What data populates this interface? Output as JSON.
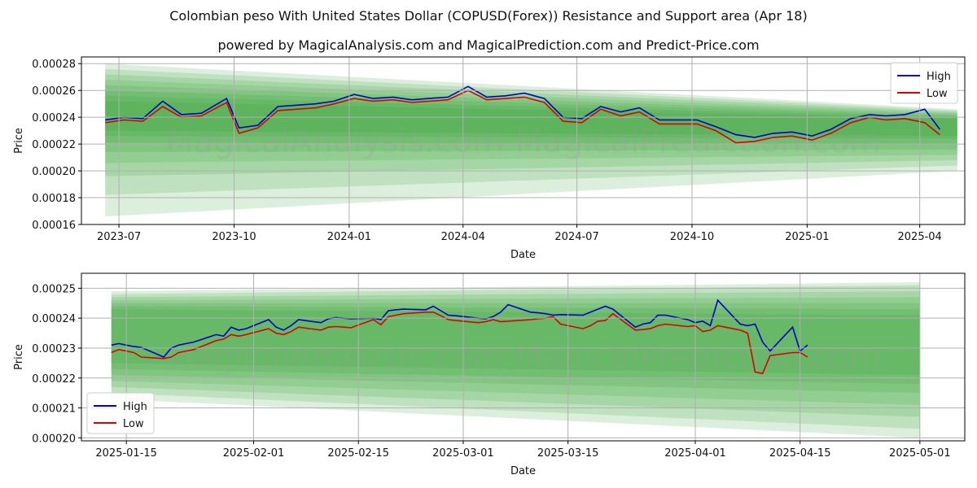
{
  "header": {
    "title": "Colombian peso With United States Dollar (COPUSD(Forex)) Resistance and Support area (Apr 18)",
    "subtitle": "powered by MagicalAnalysis.com and MagicalPrediction.com and Predict-Price.com"
  },
  "watermark": "MagicalAnalysis.com   MagicalPrediction.com",
  "colors": {
    "high": "#0000cc",
    "low": "#dd0000",
    "band": "#2e9e2e",
    "grid": "#b0b0b0"
  },
  "chart_data": [
    {
      "type": "line",
      "xlabel": "Date",
      "ylabel": "Price",
      "xlim": [
        "2023-06-01",
        "2025-05-07"
      ],
      "ylim": [
        0.00016,
        0.000285
      ],
      "xticks": [
        "2023-07-01",
        "2023-10-01",
        "2024-01-01",
        "2024-04-01",
        "2024-07-01",
        "2024-10-01",
        "2025-01-01",
        "2025-04-01"
      ],
      "xtick_labels": [
        "2023-07",
        "2023-10",
        "2024-01",
        "2024-04",
        "2024-07",
        "2024-10",
        "2025-01",
        "2025-04"
      ],
      "yticks": [
        0.00016,
        0.00018,
        0.0002,
        0.00022,
        0.00024,
        0.00026,
        0.00028
      ],
      "ytick_labels": [
        "0.00016",
        "0.00018",
        "0.00020",
        "0.00022",
        "0.00024",
        "0.00026",
        "0.00028"
      ],
      "grid": true,
      "legend": {
        "position": "top-right",
        "entries": [
          "High",
          "Low"
        ]
      },
      "x": [
        "2023-06-20",
        "2023-07-05",
        "2023-07-20",
        "2023-08-05",
        "2023-08-20",
        "2023-09-05",
        "2023-09-25",
        "2023-10-05",
        "2023-10-20",
        "2023-11-05",
        "2023-11-20",
        "2023-12-05",
        "2023-12-20",
        "2024-01-05",
        "2024-01-20",
        "2024-02-05",
        "2024-02-20",
        "2024-03-05",
        "2024-03-20",
        "2024-04-05",
        "2024-04-20",
        "2024-05-05",
        "2024-05-20",
        "2024-06-05",
        "2024-06-20",
        "2024-07-05",
        "2024-07-20",
        "2024-08-05",
        "2024-08-20",
        "2024-09-05",
        "2024-09-20",
        "2024-10-05",
        "2024-10-20",
        "2024-11-05",
        "2024-11-20",
        "2024-12-05",
        "2024-12-20",
        "2025-01-05",
        "2025-01-20",
        "2025-02-05",
        "2025-02-20",
        "2025-03-05",
        "2025-03-20",
        "2025-04-05",
        "2025-04-17"
      ],
      "series": [
        {
          "name": "High",
          "values": [
            0.000238,
            0.00024,
            0.000239,
            0.000252,
            0.000242,
            0.000243,
            0.000254,
            0.000232,
            0.000234,
            0.000248,
            0.000249,
            0.00025,
            0.000252,
            0.000257,
            0.000254,
            0.000255,
            0.000253,
            0.000254,
            0.000255,
            0.000263,
            0.000255,
            0.000256,
            0.000258,
            0.000254,
            0.00024,
            0.000239,
            0.000248,
            0.000244,
            0.000247,
            0.000238,
            0.000238,
            0.000238,
            0.000233,
            0.000227,
            0.000225,
            0.000228,
            0.000229,
            0.000226,
            0.000231,
            0.000239,
            0.000242,
            0.000241,
            0.000242,
            0.000246,
            0.000231
          ]
        },
        {
          "name": "Low",
          "values": [
            0.000236,
            0.000238,
            0.000237,
            0.000248,
            0.00024,
            0.000241,
            0.000251,
            0.000228,
            0.000232,
            0.000245,
            0.000246,
            0.000247,
            0.00025,
            0.000254,
            0.000252,
            0.000253,
            0.000251,
            0.000252,
            0.000253,
            0.00026,
            0.000253,
            0.000254,
            0.000255,
            0.000251,
            0.000237,
            0.000236,
            0.000246,
            0.000241,
            0.000244,
            0.000235,
            0.000235,
            0.000235,
            0.00023,
            0.000221,
            0.000222,
            0.000225,
            0.000226,
            0.000223,
            0.000228,
            0.000236,
            0.00024,
            0.000238,
            0.000239,
            0.000236,
            0.000227
          ]
        }
      ],
      "bands": {
        "x_start": "2023-06-20",
        "x_end": "2025-05-01",
        "start_high": [
          0.00028,
          0.000276,
          0.000272,
          0.000268,
          0.000264,
          0.00026,
          0.000256,
          0.000252
        ],
        "start_low": [
          0.000166,
          0.000182,
          0.000196,
          0.000206,
          0.000214,
          0.000221,
          0.000226,
          0.00023
        ],
        "end_high": [
          0.000246,
          0.000245,
          0.000244,
          0.000243,
          0.000242,
          0.000241,
          0.00024,
          0.000239
        ],
        "end_low": [
          0.0002,
          0.000204,
          0.000208,
          0.000212,
          0.000216,
          0.00022,
          0.000224,
          0.000226
        ]
      }
    },
    {
      "type": "line",
      "xlabel": "Date",
      "ylabel": "Price",
      "xlim": [
        "2025-01-09",
        "2025-05-07"
      ],
      "ylim": [
        0.000199,
        0.000255
      ],
      "xticks": [
        "2025-01-15",
        "2025-02-01",
        "2025-02-15",
        "2025-03-01",
        "2025-03-15",
        "2025-04-01",
        "2025-04-15",
        "2025-05-01"
      ],
      "xtick_labels": [
        "2025-01-15",
        "2025-02-01",
        "2025-02-15",
        "2025-03-01",
        "2025-03-15",
        "2025-04-01",
        "2025-04-15",
        "2025-05-01"
      ],
      "yticks": [
        0.0002,
        0.00021,
        0.00022,
        0.00023,
        0.00024,
        0.00025
      ],
      "ytick_labels": [
        "0.00020",
        "0.00021",
        "0.00022",
        "0.00023",
        "0.00024",
        "0.00025"
      ],
      "grid": true,
      "legend": {
        "position": "bottom-left",
        "entries": [
          "High",
          "Low"
        ]
      },
      "x": [
        "2025-01-13",
        "2025-01-14",
        "2025-01-15",
        "2025-01-16",
        "2025-01-17",
        "2025-01-20",
        "2025-01-21",
        "2025-01-22",
        "2025-01-23",
        "2025-01-24",
        "2025-01-27",
        "2025-01-28",
        "2025-01-29",
        "2025-01-30",
        "2025-01-31",
        "2025-02-03",
        "2025-02-04",
        "2025-02-05",
        "2025-02-06",
        "2025-02-07",
        "2025-02-10",
        "2025-02-11",
        "2025-02-12",
        "2025-02-13",
        "2025-02-14",
        "2025-02-17",
        "2025-02-18",
        "2025-02-19",
        "2025-02-20",
        "2025-02-21",
        "2025-02-24",
        "2025-02-25",
        "2025-02-26",
        "2025-02-27",
        "2025-02-28",
        "2025-03-03",
        "2025-03-04",
        "2025-03-05",
        "2025-03-06",
        "2025-03-07",
        "2025-03-10",
        "2025-03-11",
        "2025-03-12",
        "2025-03-13",
        "2025-03-14",
        "2025-03-17",
        "2025-03-18",
        "2025-03-19",
        "2025-03-20",
        "2025-03-21",
        "2025-03-24",
        "2025-03-25",
        "2025-03-26",
        "2025-03-27",
        "2025-03-28",
        "2025-03-31",
        "2025-04-01",
        "2025-04-02",
        "2025-04-03",
        "2025-04-04",
        "2025-04-07",
        "2025-04-08",
        "2025-04-09",
        "2025-04-10",
        "2025-04-11",
        "2025-04-14",
        "2025-04-15",
        "2025-04-16"
      ],
      "series": [
        {
          "name": "High",
          "values": [
            0.000231,
            0.0002315,
            0.000231,
            0.0002305,
            0.0002302,
            0.000227,
            0.00023,
            0.000231,
            0.0002315,
            0.000232,
            0.0002345,
            0.000234,
            0.000237,
            0.000236,
            0.0002365,
            0.0002395,
            0.000237,
            0.000236,
            0.0002375,
            0.0002395,
            0.0002385,
            0.0002398,
            0.0002402,
            0.00024,
            0.0002398,
            0.00024,
            0.0002395,
            0.0002425,
            0.0002428,
            0.000243,
            0.0002428,
            0.000244,
            0.0002425,
            0.000241,
            0.0002408,
            0.00024,
            0.0002398,
            0.0002405,
            0.000242,
            0.0002445,
            0.000242,
            0.0002418,
            0.0002415,
            0.000241,
            0.0002412,
            0.000241,
            0.000242,
            0.000243,
            0.000244,
            0.000243,
            0.000237,
            0.000238,
            0.0002385,
            0.000241,
            0.000241,
            0.0002395,
            0.0002385,
            0.000239,
            0.0002375,
            0.000246,
            0.000238,
            0.0002375,
            0.000238,
            0.000232,
            0.000229,
            0.000237,
            0.000229,
            0.000231
          ]
        },
        {
          "name": "Low",
          "values": [
            0.0002285,
            0.0002295,
            0.000229,
            0.0002285,
            0.000227,
            0.0002265,
            0.000227,
            0.0002285,
            0.000229,
            0.0002295,
            0.0002325,
            0.000233,
            0.0002345,
            0.000234,
            0.0002345,
            0.0002365,
            0.000235,
            0.0002345,
            0.0002355,
            0.000237,
            0.000236,
            0.000237,
            0.0002372,
            0.000237,
            0.0002368,
            0.0002395,
            0.0002378,
            0.0002405,
            0.000241,
            0.0002415,
            0.000242,
            0.000242,
            0.0002408,
            0.0002395,
            0.0002392,
            0.0002385,
            0.0002388,
            0.0002395,
            0.0002388,
            0.000239,
            0.0002395,
            0.0002398,
            0.00024,
            0.0002405,
            0.000238,
            0.0002365,
            0.0002375,
            0.000239,
            0.0002392,
            0.0002415,
            0.000236,
            0.0002362,
            0.0002365,
            0.0002375,
            0.000238,
            0.0002372,
            0.0002375,
            0.0002355,
            0.000236,
            0.0002375,
            0.000236,
            0.000235,
            0.000222,
            0.0002215,
            0.0002275,
            0.0002285,
            0.0002285,
            0.000227
          ]
        }
      ],
      "bands": {
        "x_start": "2025-01-13",
        "x_end": "2025-05-01",
        "start_high": [
          0.000249,
          0.000248,
          0.000247,
          0.000246,
          0.000245,
          0.000244,
          0.000243
        ],
        "start_low": [
          0.000213,
          0.000215,
          0.000217,
          0.000219,
          0.000221,
          0.000223,
          0.000225
        ],
        "end_high": [
          0.000252,
          0.000251,
          0.000249,
          0.000247,
          0.000245,
          0.000243,
          0.000241
        ],
        "end_low": [
          0.0002,
          0.000203,
          0.000207,
          0.000211,
          0.000215,
          0.000218,
          0.000221
        ]
      }
    }
  ]
}
